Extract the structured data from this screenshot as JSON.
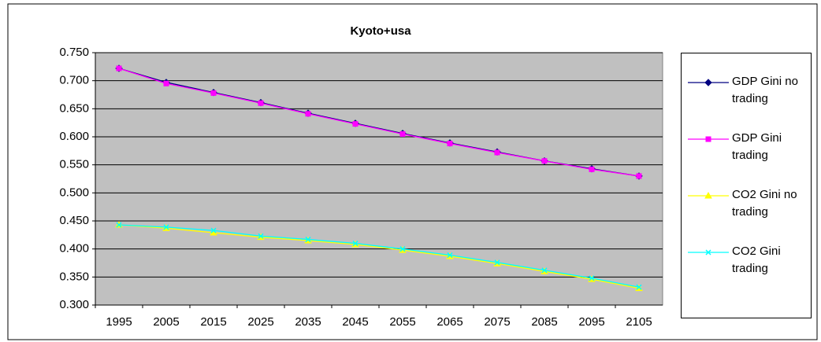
{
  "chart_data": {
    "type": "line",
    "title": "Kyoto+usa",
    "categories": [
      "1995",
      "2005",
      "2015",
      "2025",
      "2035",
      "2045",
      "2055",
      "2065",
      "2075",
      "2085",
      "2095",
      "2105"
    ],
    "series": [
      {
        "name": "GDP Gini no trading",
        "color": "#000080",
        "marker": "diamond",
        "values": [
          0.722,
          0.697,
          0.679,
          0.661,
          0.642,
          0.624,
          0.606,
          0.589,
          0.573,
          0.557,
          0.543,
          0.53
        ]
      },
      {
        "name": "GDP Gini trading",
        "color": "#FF00FF",
        "marker": "square",
        "values": [
          0.722,
          0.695,
          0.678,
          0.66,
          0.641,
          0.623,
          0.605,
          0.588,
          0.572,
          0.557,
          0.542,
          0.53
        ]
      },
      {
        "name": "CO2 Gini no trading",
        "color": "#FFFF00",
        "marker": "triangle",
        "values": [
          0.443,
          0.437,
          0.429,
          0.421,
          0.415,
          0.408,
          0.398,
          0.387,
          0.374,
          0.36,
          0.346,
          0.33
        ]
      },
      {
        "name": "CO2 Gini trading",
        "color": "#00FFFF",
        "marker": "cross",
        "values": [
          0.443,
          0.439,
          0.433,
          0.423,
          0.417,
          0.41,
          0.4,
          0.389,
          0.376,
          0.362,
          0.348,
          0.332
        ]
      }
    ],
    "ylim": [
      0.3,
      0.75
    ],
    "yticks": [
      {
        "value": 0.3,
        "label": "0.300"
      },
      {
        "value": 0.35,
        "label": "0.350"
      },
      {
        "value": 0.4,
        "label": "0.400"
      },
      {
        "value": 0.45,
        "label": "0.450"
      },
      {
        "value": 0.5,
        "label": "0.500"
      },
      {
        "value": 0.55,
        "label": "0.550"
      },
      {
        "value": 0.6,
        "label": "0.600"
      },
      {
        "value": 0.65,
        "label": "0.650"
      },
      {
        "value": 0.7,
        "label": "0.700"
      },
      {
        "value": 0.75,
        "label": "0.750"
      }
    ],
    "grid": true,
    "legend": "right",
    "plot_background": "#C0C0C0"
  }
}
